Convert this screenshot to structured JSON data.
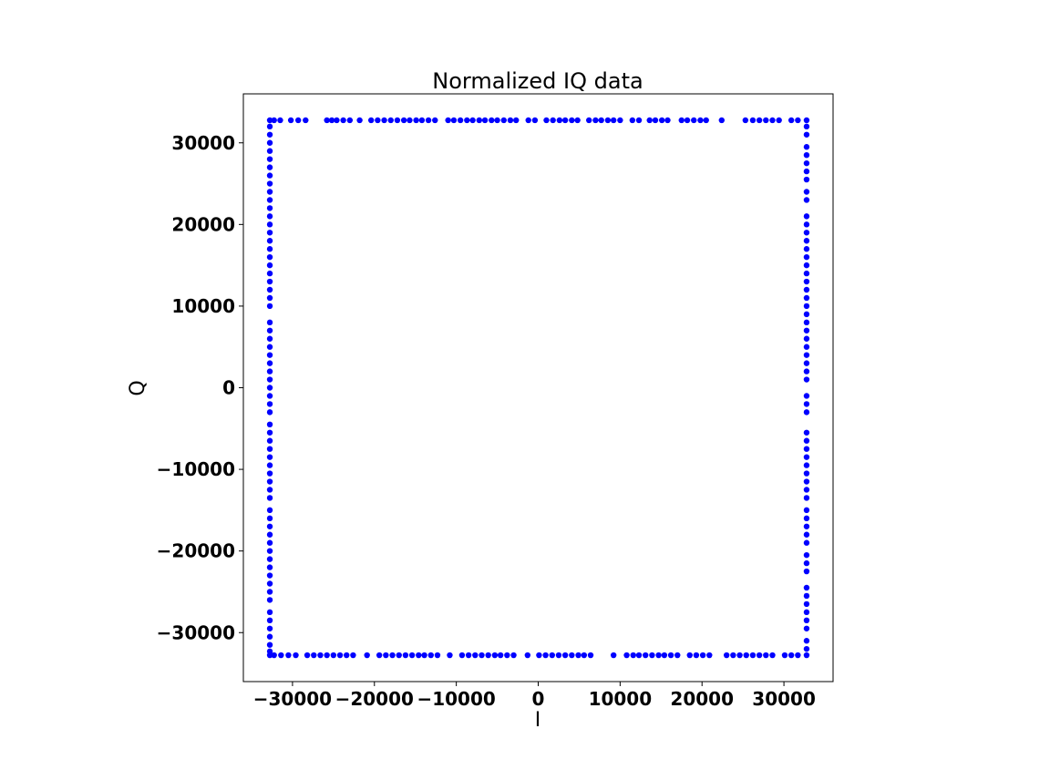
{
  "chart_data": {
    "type": "scatter",
    "title": "Normalized IQ data",
    "xlabel": "I",
    "ylabel": "Q",
    "xlim": [
      -36000,
      36000
    ],
    "ylim": [
      -36000,
      36000
    ],
    "xticks": [
      -30000,
      -20000,
      -10000,
      0,
      10000,
      20000,
      30000
    ],
    "yticks": [
      -30000,
      -20000,
      -10000,
      0,
      10000,
      20000,
      30000
    ],
    "xtick_labels": [
      "−30000",
      "−20000",
      "−10000",
      "0",
      "10000",
      "20000",
      "30000"
    ],
    "ytick_labels": [
      "−30000",
      "−20000",
      "−10000",
      "0",
      "10000",
      "20000",
      "30000"
    ],
    "grid": false,
    "marker_color": "#0000ff",
    "series": [
      {
        "points": [
          [
            -32768,
            32767
          ],
          [
            -32250,
            32767
          ],
          [
            -31500,
            32767
          ],
          [
            -30200,
            32767
          ],
          [
            -29300,
            32767
          ],
          [
            -28400,
            32767
          ],
          [
            -25800,
            32767
          ],
          [
            -25200,
            32767
          ],
          [
            -24600,
            32767
          ],
          [
            -23800,
            32767
          ],
          [
            -23000,
            32767
          ],
          [
            -21800,
            32767
          ],
          [
            -20400,
            32767
          ],
          [
            -19600,
            32767
          ],
          [
            -18800,
            32767
          ],
          [
            -18000,
            32767
          ],
          [
            -17200,
            32767
          ],
          [
            -16400,
            32767
          ],
          [
            -15700,
            32767
          ],
          [
            -14900,
            32767
          ],
          [
            -14200,
            32767
          ],
          [
            -13400,
            32767
          ],
          [
            -12600,
            32767
          ],
          [
            -11000,
            32767
          ],
          [
            -10300,
            32767
          ],
          [
            -9500,
            32767
          ],
          [
            -8700,
            32767
          ],
          [
            -8000,
            32767
          ],
          [
            -7200,
            32767
          ],
          [
            -6500,
            32767
          ],
          [
            -5700,
            32767
          ],
          [
            -5000,
            32767
          ],
          [
            -4200,
            32767
          ],
          [
            -3400,
            32767
          ],
          [
            -2700,
            32767
          ],
          [
            -1200,
            32767
          ],
          [
            -400,
            32767
          ],
          [
            1000,
            32767
          ],
          [
            1800,
            32767
          ],
          [
            2600,
            32767
          ],
          [
            3300,
            32767
          ],
          [
            4100,
            32767
          ],
          [
            4800,
            32767
          ],
          [
            6200,
            32767
          ],
          [
            7000,
            32767
          ],
          [
            7700,
            32767
          ],
          [
            8500,
            32767
          ],
          [
            9200,
            32767
          ],
          [
            10000,
            32767
          ],
          [
            11500,
            32767
          ],
          [
            12300,
            32767
          ],
          [
            13600,
            32767
          ],
          [
            14300,
            32767
          ],
          [
            15100,
            32767
          ],
          [
            15800,
            32767
          ],
          [
            17500,
            32767
          ],
          [
            18200,
            32767
          ],
          [
            19000,
            32767
          ],
          [
            19800,
            32767
          ],
          [
            20500,
            32767
          ],
          [
            22400,
            32767
          ],
          [
            25300,
            32767
          ],
          [
            26200,
            32767
          ],
          [
            27000,
            32767
          ],
          [
            27800,
            32767
          ],
          [
            28600,
            32767
          ],
          [
            29400,
            32767
          ],
          [
            30900,
            32767
          ],
          [
            31700,
            32767
          ],
          [
            32767,
            32767
          ],
          [
            -32768,
            -32768
          ],
          [
            -32250,
            -32768
          ],
          [
            -31400,
            -32768
          ],
          [
            -30500,
            -32768
          ],
          [
            -29600,
            -32768
          ],
          [
            -28200,
            -32768
          ],
          [
            -27400,
            -32768
          ],
          [
            -26600,
            -32768
          ],
          [
            -25800,
            -32768
          ],
          [
            -25000,
            -32768
          ],
          [
            -24200,
            -32768
          ],
          [
            -23400,
            -32768
          ],
          [
            -22600,
            -32768
          ],
          [
            -20900,
            -32768
          ],
          [
            -19400,
            -32768
          ],
          [
            -18600,
            -32768
          ],
          [
            -17800,
            -32768
          ],
          [
            -17000,
            -32768
          ],
          [
            -16200,
            -32768
          ],
          [
            -15400,
            -32768
          ],
          [
            -14600,
            -32768
          ],
          [
            -13900,
            -32768
          ],
          [
            -13100,
            -32768
          ],
          [
            -12300,
            -32768
          ],
          [
            -10800,
            -32768
          ],
          [
            -9300,
            -32768
          ],
          [
            -8500,
            -32768
          ],
          [
            -7700,
            -32768
          ],
          [
            -6900,
            -32768
          ],
          [
            -6100,
            -32768
          ],
          [
            -5300,
            -32768
          ],
          [
            -4600,
            -32768
          ],
          [
            -3800,
            -32768
          ],
          [
            -3000,
            -32768
          ],
          [
            -1300,
            -32768
          ],
          [
            100,
            -32768
          ],
          [
            900,
            -32768
          ],
          [
            1700,
            -32768
          ],
          [
            2500,
            -32768
          ],
          [
            3300,
            -32768
          ],
          [
            4100,
            -32768
          ],
          [
            4900,
            -32768
          ],
          [
            5600,
            -32768
          ],
          [
            6400,
            -32768
          ],
          [
            9200,
            -32768
          ],
          [
            10800,
            -32768
          ],
          [
            11600,
            -32768
          ],
          [
            12300,
            -32768
          ],
          [
            13100,
            -32768
          ],
          [
            13900,
            -32768
          ],
          [
            14700,
            -32768
          ],
          [
            15400,
            -32768
          ],
          [
            16200,
            -32768
          ],
          [
            17000,
            -32768
          ],
          [
            18500,
            -32768
          ],
          [
            19300,
            -32768
          ],
          [
            20100,
            -32768
          ],
          [
            20900,
            -32768
          ],
          [
            23000,
            -32768
          ],
          [
            23800,
            -32768
          ],
          [
            24600,
            -32768
          ],
          [
            25400,
            -32768
          ],
          [
            26200,
            -32768
          ],
          [
            27000,
            -32768
          ],
          [
            27800,
            -32768
          ],
          [
            28600,
            -32768
          ],
          [
            30100,
            -32768
          ],
          [
            30900,
            -32768
          ],
          [
            31700,
            -32768
          ],
          [
            32767,
            -32768
          ],
          [
            -32768,
            32000
          ],
          [
            -32768,
            31000
          ],
          [
            -32768,
            30000
          ],
          [
            -32768,
            29000
          ],
          [
            -32768,
            28000
          ],
          [
            -32768,
            27000
          ],
          [
            -32768,
            26000
          ],
          [
            -32768,
            25000
          ],
          [
            -32768,
            24000
          ],
          [
            -32768,
            23000
          ],
          [
            -32768,
            22000
          ],
          [
            -32768,
            21000
          ],
          [
            -32768,
            20000
          ],
          [
            -32768,
            19000
          ],
          [
            -32768,
            18000
          ],
          [
            -32768,
            17000
          ],
          [
            -32768,
            16000
          ],
          [
            -32768,
            15000
          ],
          [
            -32768,
            14000
          ],
          [
            -32768,
            13000
          ],
          [
            -32768,
            12000
          ],
          [
            -32768,
            11000
          ],
          [
            -32768,
            10000
          ],
          [
            -32768,
            8000
          ],
          [
            -32768,
            7000
          ],
          [
            -32768,
            6000
          ],
          [
            -32768,
            5000
          ],
          [
            -32768,
            4000
          ],
          [
            -32768,
            3000
          ],
          [
            -32768,
            2000
          ],
          [
            -32768,
            1000
          ],
          [
            -32768,
            0
          ],
          [
            -32768,
            -1000
          ],
          [
            -32768,
            -2000
          ],
          [
            -32768,
            -3000
          ],
          [
            -32768,
            -4500
          ],
          [
            -32768,
            -5500
          ],
          [
            -32768,
            -6500
          ],
          [
            -32768,
            -7500
          ],
          [
            -32768,
            -8500
          ],
          [
            -32768,
            -9500
          ],
          [
            -32768,
            -10500
          ],
          [
            -32768,
            -11500
          ],
          [
            -32768,
            -12500
          ],
          [
            -32768,
            -13500
          ],
          [
            -32768,
            -15000
          ],
          [
            -32768,
            -16000
          ],
          [
            -32768,
            -17000
          ],
          [
            -32768,
            -18000
          ],
          [
            -32768,
            -19000
          ],
          [
            -32768,
            -20000
          ],
          [
            -32768,
            -21000
          ],
          [
            -32768,
            -22000
          ],
          [
            -32768,
            -23000
          ],
          [
            -32768,
            -24000
          ],
          [
            -32768,
            -25000
          ],
          [
            -32768,
            -26000
          ],
          [
            -32768,
            -27500
          ],
          [
            -32768,
            -28500
          ],
          [
            -32768,
            -29500
          ],
          [
            -32768,
            -30500
          ],
          [
            -32768,
            -31500
          ],
          [
            -32768,
            -32300
          ],
          [
            32767,
            32000
          ],
          [
            32767,
            31000
          ],
          [
            32767,
            29500
          ],
          [
            32767,
            28500
          ],
          [
            32767,
            27500
          ],
          [
            32767,
            26500
          ],
          [
            32767,
            25500
          ],
          [
            32767,
            24000
          ],
          [
            32767,
            23000
          ],
          [
            32767,
            21000
          ],
          [
            32767,
            20000
          ],
          [
            32767,
            19000
          ],
          [
            32767,
            18000
          ],
          [
            32767,
            17000
          ],
          [
            32767,
            16000
          ],
          [
            32767,
            15000
          ],
          [
            32767,
            14000
          ],
          [
            32767,
            13000
          ],
          [
            32767,
            12000
          ],
          [
            32767,
            11000
          ],
          [
            32767,
            10000
          ],
          [
            32767,
            9000
          ],
          [
            32767,
            8000
          ],
          [
            32767,
            7000
          ],
          [
            32767,
            6000
          ],
          [
            32767,
            5000
          ],
          [
            32767,
            4000
          ],
          [
            32767,
            3000
          ],
          [
            32767,
            2000
          ],
          [
            32767,
            1000
          ],
          [
            32767,
            -1000
          ],
          [
            32767,
            -2000
          ],
          [
            32767,
            -3000
          ],
          [
            32767,
            -5500
          ],
          [
            32767,
            -6500
          ],
          [
            32767,
            -7500
          ],
          [
            32767,
            -8500
          ],
          [
            32767,
            -9500
          ],
          [
            32767,
            -10500
          ],
          [
            32767,
            -11500
          ],
          [
            32767,
            -12500
          ],
          [
            32767,
            -13500
          ],
          [
            32767,
            -15000
          ],
          [
            32767,
            -16000
          ],
          [
            32767,
            -17000
          ],
          [
            32767,
            -18000
          ],
          [
            32767,
            -19000
          ],
          [
            32767,
            -20500
          ],
          [
            32767,
            -21500
          ],
          [
            32767,
            -22500
          ],
          [
            32767,
            -24500
          ],
          [
            32767,
            -25500
          ],
          [
            32767,
            -26500
          ],
          [
            32767,
            -27500
          ],
          [
            32767,
            -28500
          ],
          [
            32767,
            -29500
          ],
          [
            32767,
            -31000
          ],
          [
            32767,
            -32000
          ]
        ]
      }
    ]
  }
}
